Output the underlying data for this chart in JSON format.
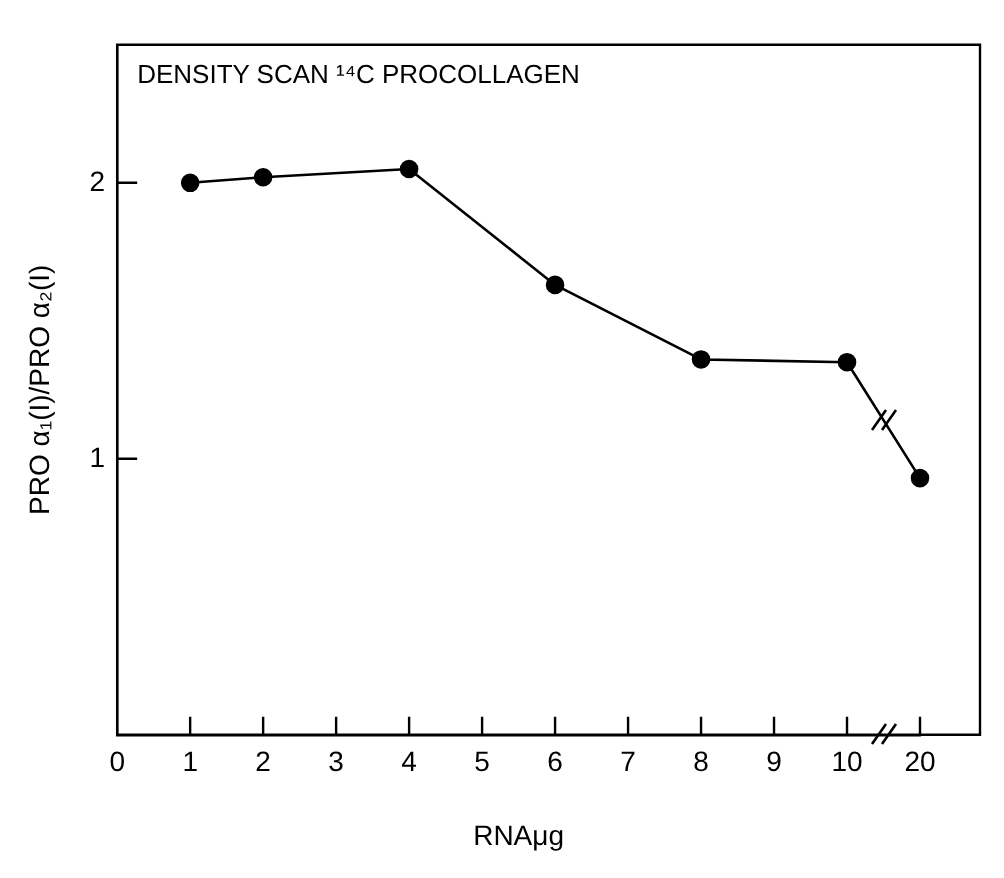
{
  "chart_data": {
    "type": "line",
    "title": "DENSITY SCAN ¹⁴C PROCOLLAGEN",
    "xlabel": "RNAμg",
    "ylabel": "PRO α₁(I)/PRO α₂(I)",
    "categories": [
      "0",
      "1",
      "2",
      "3",
      "4",
      "5",
      "6",
      "7",
      "8",
      "9",
      "10",
      "20"
    ],
    "series": [
      {
        "color": "#000000",
        "values": [
          null,
          2.0,
          2.02,
          null,
          2.05,
          null,
          1.63,
          null,
          1.36,
          null,
          1.35,
          0.93
        ]
      }
    ],
    "ylim": [
      0,
      2.5
    ],
    "yticks": [
      1,
      2
    ],
    "grid": false,
    "legend": false,
    "marker": "circle",
    "line_style": "solid"
  }
}
